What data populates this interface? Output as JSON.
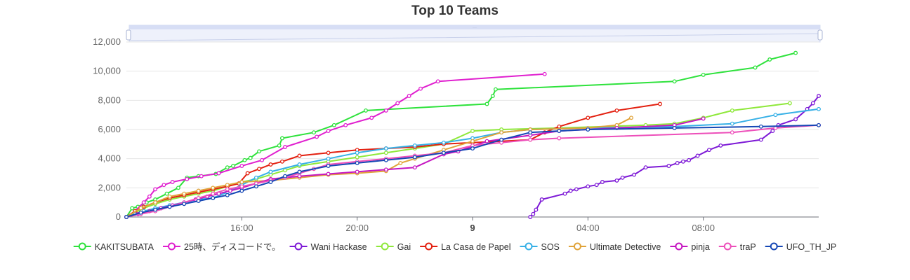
{
  "chart_data": {
    "type": "line",
    "title": "Top 10 Teams",
    "xlabel": "",
    "ylabel": "",
    "x_unit": "hours since 12:00 on day 8",
    "xlim": [
      0,
      24
    ],
    "ylim": [
      0,
      12000
    ],
    "y_ticks": [
      0,
      2000,
      4000,
      6000,
      8000,
      10000,
      12000
    ],
    "y_tick_labels": [
      "0",
      "2,000",
      "4,000",
      "6,000",
      "8,000",
      "10,000",
      "12,000"
    ],
    "x_ticks": [
      4,
      8,
      12,
      16,
      20
    ],
    "x_tick_labels": [
      "16:00",
      "20:00",
      "9",
      "04:00",
      "08:00"
    ],
    "x_tick_bold": [
      false,
      false,
      true,
      false,
      false
    ],
    "legend_position": "bottom",
    "has_zoom_slider": true,
    "series": [
      {
        "name": "KAKITSUBATA",
        "color": "#2ee23c",
        "x": [
          0,
          0.2,
          0.4,
          0.7,
          1.0,
          1.4,
          1.8,
          2.1,
          2.5,
          3.1,
          3.5,
          3.7,
          4.1,
          4.3,
          4.6,
          5.3,
          5.4,
          6.5,
          7.2,
          8.3,
          12.5,
          12.7,
          12.8,
          19.0,
          20.0,
          21.8,
          22.3,
          23.2
        ],
        "y": [
          0,
          600,
          700,
          1000,
          1200,
          1600,
          2000,
          2700,
          2800,
          2950,
          3400,
          3500,
          3900,
          4050,
          4500,
          4900,
          5400,
          5800,
          6300,
          7300,
          7750,
          8300,
          8750,
          9300,
          9750,
          10250,
          10800,
          11250
        ]
      },
      {
        "name": "25時、ディスコードで。",
        "color": "#e01fcf",
        "x": [
          0,
          0.3,
          0.6,
          0.8,
          1.0,
          1.3,
          1.6,
          2.1,
          2.6,
          3.2,
          4.0,
          4.7,
          5.5,
          6.6,
          7.0,
          7.6,
          8.5,
          9.0,
          9.4,
          9.8,
          10.2,
          10.8,
          14.5
        ],
        "y": [
          0,
          400,
          1000,
          1400,
          1900,
          2200,
          2400,
          2600,
          2800,
          3000,
          3500,
          3900,
          4800,
          5500,
          5900,
          6300,
          6800,
          7300,
          7800,
          8300,
          8800,
          9300,
          9800
        ]
      },
      {
        "name": "Wani Hackase",
        "color": "#7d19d6",
        "x": [
          14.0,
          14.1,
          14.2,
          14.4,
          15.2,
          15.4,
          15.6,
          16.0,
          16.3,
          16.5,
          17.0,
          17.2,
          17.6,
          18.0,
          18.8,
          19.1,
          19.3,
          19.5,
          19.8,
          20.2,
          20.6,
          22.0,
          22.4,
          22.6,
          23.2,
          23.6,
          23.8,
          24.0
        ],
        "y": [
          0,
          200,
          500,
          1200,
          1600,
          1800,
          1900,
          2100,
          2200,
          2400,
          2500,
          2700,
          2900,
          3400,
          3500,
          3700,
          3800,
          3900,
          4200,
          4600,
          4900,
          5300,
          5900,
          6300,
          6700,
          7400,
          7800,
          8300
        ]
      },
      {
        "name": "Gai",
        "color": "#8ee83a",
        "x": [
          0,
          0.3,
          0.6,
          1.0,
          1.5,
          2.0,
          2.5,
          3.0,
          3.5,
          4.0,
          4.5,
          5.0,
          5.5,
          6.0,
          7.0,
          8.0,
          9.0,
          10.0,
          11.0,
          12.0,
          13.0,
          15.0,
          18.0,
          19.0,
          20.0,
          21.0,
          23.0
        ],
        "y": [
          0,
          300,
          600,
          900,
          1200,
          1400,
          1600,
          1800,
          2100,
          2400,
          2600,
          2900,
          3200,
          3500,
          3800,
          4100,
          4400,
          4700,
          5000,
          5900,
          6000,
          6100,
          6300,
          6400,
          6800,
          7300,
          7800
        ]
      },
      {
        "name": "La Casa de Papel",
        "color": "#e32010",
        "x": [
          0,
          0.3,
          0.6,
          1.0,
          1.5,
          2.0,
          2.5,
          3.0,
          3.5,
          3.9,
          4.2,
          4.6,
          5.0,
          5.4,
          6.0,
          7.0,
          8.0,
          9.0,
          10.0,
          11.0,
          12.0,
          13.0,
          14.0,
          14.5,
          15.0,
          16.0,
          17.0,
          18.5
        ],
        "y": [
          0,
          400,
          700,
          1000,
          1300,
          1500,
          1700,
          1900,
          2100,
          2300,
          3000,
          3300,
          3600,
          3800,
          4200,
          4400,
          4600,
          4700,
          4800,
          5000,
          5100,
          5200,
          5300,
          5800,
          6200,
          6800,
          7300,
          7750
        ]
      },
      {
        "name": "SOS",
        "color": "#36b0e6",
        "x": [
          0,
          0.3,
          0.6,
          1.0,
          1.5,
          2.0,
          2.5,
          3.0,
          3.5,
          4.0,
          4.5,
          5.0,
          6.0,
          7.0,
          8.0,
          9.0,
          10.0,
          11.0,
          12.0,
          13.0,
          14.0,
          16.0,
          19.0,
          21.0,
          22.5,
          24.0
        ],
        "y": [
          0,
          200,
          400,
          600,
          800,
          1000,
          1200,
          1300,
          1700,
          2200,
          2700,
          3100,
          3600,
          4000,
          4400,
          4700,
          4900,
          5100,
          5400,
          5800,
          6000,
          6100,
          6200,
          6400,
          7000,
          7400
        ]
      },
      {
        "name": "Ultimate Detective",
        "color": "#e0a339",
        "x": [
          0,
          0.5,
          1.0,
          1.5,
          2.0,
          2.5,
          3.0,
          3.5,
          4.0,
          5.0,
          6.0,
          7.0,
          8.0,
          9.0,
          9.5,
          10.0,
          11.0,
          12.0,
          13.0,
          14.0,
          16.0,
          17.0,
          17.5
        ],
        "y": [
          0,
          600,
          1000,
          1400,
          1600,
          1800,
          2000,
          2200,
          2400,
          2500,
          2700,
          2900,
          3000,
          3150,
          3700,
          4000,
          4600,
          5200,
          5800,
          6000,
          6100,
          6300,
          6800
        ]
      },
      {
        "name": "pinja",
        "color": "#c516c1",
        "x": [
          0,
          0.4,
          0.8,
          1.2,
          1.6,
          2.0,
          2.4,
          2.8,
          3.2,
          3.6,
          4.0,
          4.5,
          5.0,
          6.0,
          7.0,
          8.0,
          9.0,
          10.0,
          11.0,
          11.5,
          12.5,
          14.0,
          15.0,
          17.0,
          19.0,
          20.0
        ],
        "y": [
          0,
          200,
          400,
          600,
          800,
          1000,
          1200,
          1400,
          1600,
          1800,
          2000,
          2300,
          2600,
          2800,
          2950,
          3100,
          3250,
          3400,
          4300,
          4500,
          5200,
          5600,
          5900,
          6100,
          6300,
          6750
        ]
      },
      {
        "name": "traP",
        "color": "#ed4fba",
        "x": [
          0,
          0.5,
          1.0,
          1.5,
          2.0,
          2.5,
          3.0,
          3.5,
          4.0,
          4.5,
          5.0,
          5.5,
          6.0,
          6.5,
          7.0,
          8.0,
          9.0,
          10.0,
          11.0,
          12.0,
          13.0,
          14.0,
          15.0,
          21.0,
          22.5,
          24.0
        ],
        "y": [
          0,
          200,
          400,
          700,
          1000,
          1300,
          1600,
          1900,
          2100,
          2300,
          2500,
          2700,
          3000,
          3300,
          3600,
          3800,
          4000,
          4200,
          4400,
          4900,
          5100,
          5300,
          5400,
          5800,
          6100,
          6300
        ]
      },
      {
        "name": "UFO_TH_JP",
        "color": "#1547b5",
        "x": [
          0,
          0.5,
          1.0,
          1.5,
          2.0,
          2.5,
          3.0,
          3.5,
          4.0,
          4.5,
          5.0,
          5.5,
          6.0,
          7.0,
          8.0,
          9.0,
          10.0,
          11.0,
          12.0,
          13.0,
          14.0,
          15.0,
          16.0,
          19.0,
          22.0,
          24.0
        ],
        "y": [
          0,
          300,
          500,
          700,
          900,
          1100,
          1300,
          1500,
          1800,
          2100,
          2400,
          2800,
          3100,
          3500,
          3700,
          3900,
          4100,
          4400,
          4700,
          5300,
          5800,
          5900,
          6000,
          6100,
          6200,
          6300
        ]
      }
    ]
  }
}
